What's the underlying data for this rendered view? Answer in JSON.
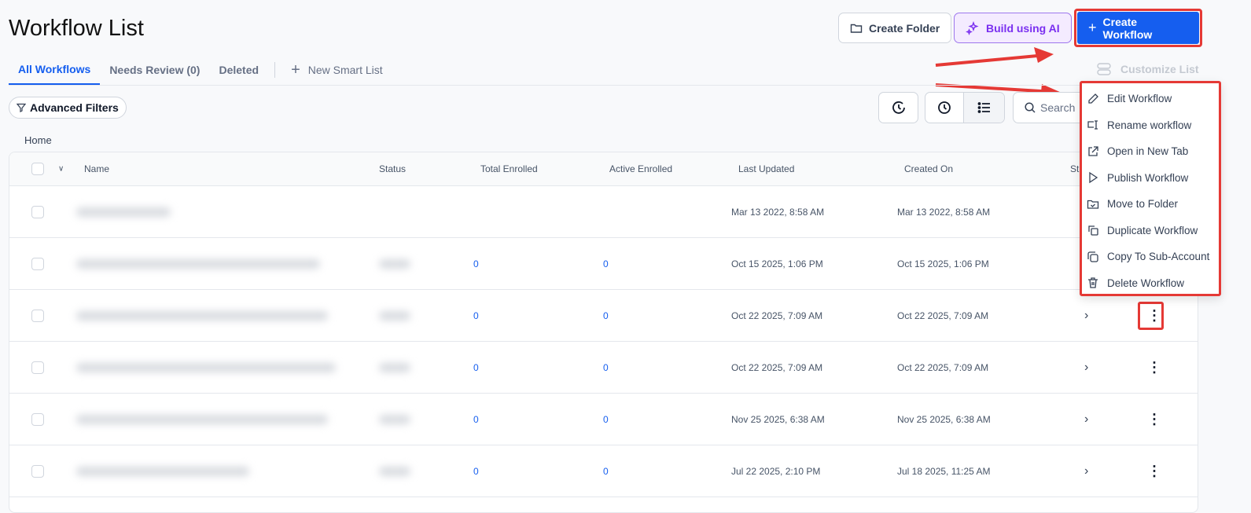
{
  "header": {
    "title": "Workflow List",
    "create_folder": "Create Folder",
    "build_ai": "Build using AI",
    "create_workflow": "Create Workflow",
    "customize_list": "Customize List"
  },
  "tabs": [
    {
      "label": "All Workflows",
      "active": true
    },
    {
      "label": "Needs Review (0)"
    },
    {
      "label": "Deleted"
    },
    {
      "label": "New Smart List"
    }
  ],
  "filters": {
    "advanced": "Advanced Filters",
    "search_placeholder": "Search"
  },
  "breadcrumb": "Home",
  "table": {
    "columns": [
      "Name",
      "Status",
      "Total Enrolled",
      "Active Enrolled",
      "Last Updated",
      "Created On",
      "St"
    ],
    "rows": [
      {
        "total": "",
        "active": "",
        "updated": "Mar 13 2022, 8:58 AM",
        "created": "Mar 13 2022, 8:58 AM"
      },
      {
        "total": "0",
        "active": "0",
        "updated": "Oct 15 2025, 1:06 PM",
        "created": "Oct 15 2025, 1:06 PM"
      },
      {
        "total": "0",
        "active": "0",
        "updated": "Oct 22 2025, 7:09 AM",
        "created": "Oct 22 2025, 7:09 AM"
      },
      {
        "total": "0",
        "active": "0",
        "updated": "Oct 22 2025, 7:09 AM",
        "created": "Oct 22 2025, 7:09 AM"
      },
      {
        "total": "0",
        "active": "0",
        "updated": "Nov 25 2025, 6:38 AM",
        "created": "Nov 25 2025, 6:38 AM"
      },
      {
        "total": "0",
        "active": "0",
        "updated": "Jul 22 2025, 2:10 PM",
        "created": "Jul 18 2025, 11:25 AM"
      }
    ]
  },
  "menu": {
    "items": [
      "Edit Workflow",
      "Rename workflow",
      "Open in New Tab",
      "Publish Workflow",
      "Move to Folder",
      "Duplicate Workflow",
      "Copy To Sub-Account",
      "Delete Workflow"
    ]
  },
  "colors": {
    "primary": "#155eef",
    "ai": "#7a2ff0",
    "annotation": "#e53935"
  }
}
